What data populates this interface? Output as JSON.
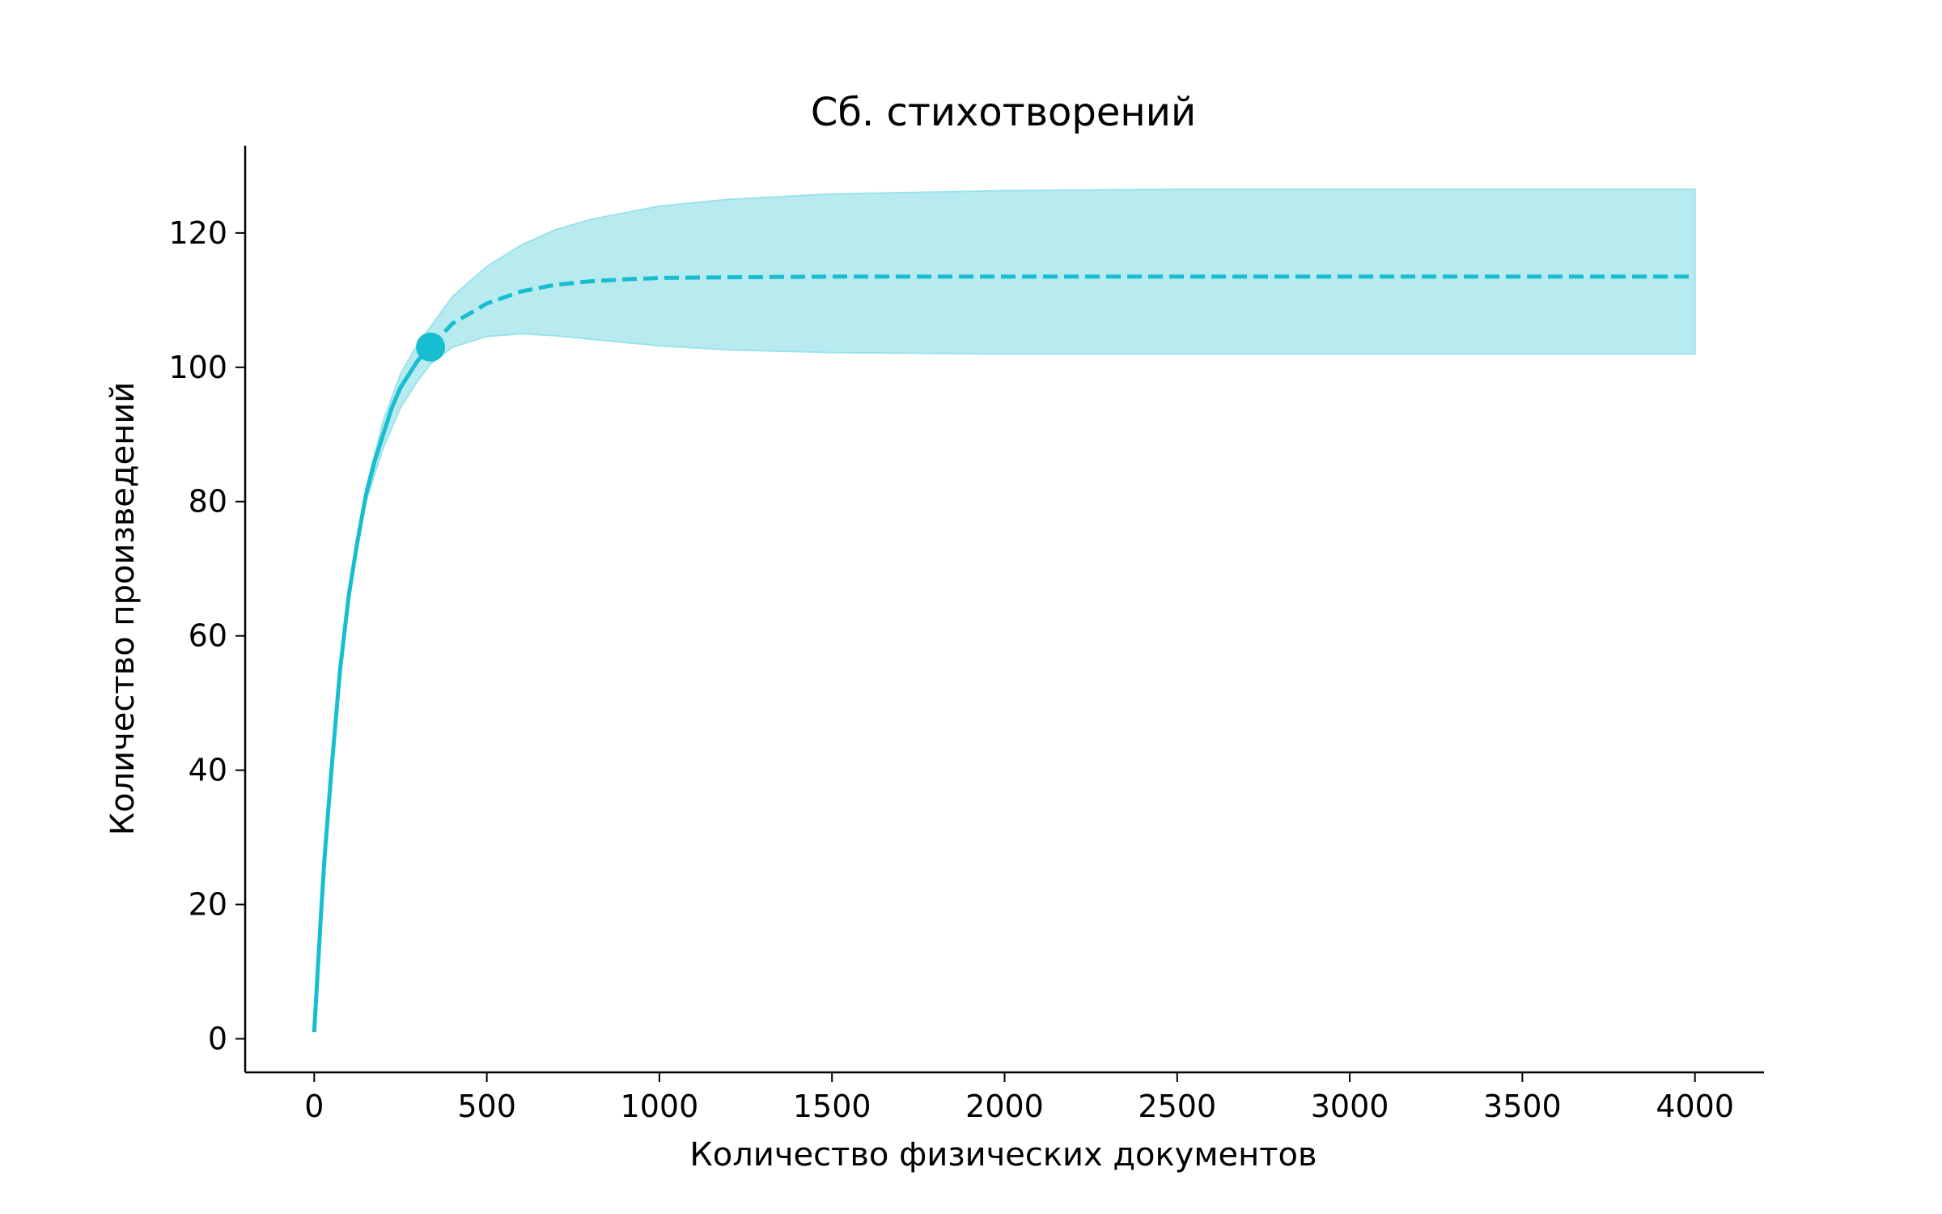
{
  "chart_data": {
    "type": "line",
    "title": "Сб. стихотворений",
    "xlabel": "Количество физических документов",
    "ylabel": "Количество произведений",
    "xlim": [
      -200,
      4200
    ],
    "ylim": [
      -5,
      133
    ],
    "xticks": [
      0,
      500,
      1000,
      1500,
      2000,
      2500,
      3000,
      3500,
      4000
    ],
    "yticks": [
      0,
      20,
      40,
      60,
      80,
      100,
      120
    ],
    "grid": false,
    "legend": "none",
    "color": "#17becf",
    "band_color": "#9ae3ea",
    "series": [
      {
        "style": "solid",
        "x": [
          0,
          10,
          20,
          30,
          50,
          75,
          100,
          125,
          150,
          175,
          200,
          225,
          250,
          275,
          300,
          337
        ],
        "y": [
          1,
          10,
          19,
          27,
          40,
          55,
          66,
          74,
          81,
          86,
          90,
          94,
          97,
          99,
          101,
          103
        ]
      },
      {
        "style": "dashed",
        "x": [
          337,
          400,
          500,
          600,
          700,
          800,
          900,
          1000,
          1200,
          1500,
          2000,
          2500,
          3000,
          3500,
          4000
        ],
        "y": [
          103,
          106.5,
          109.5,
          111.3,
          112.3,
          112.8,
          113.1,
          113.3,
          113.4,
          113.5,
          113.5,
          113.5,
          113.5,
          113.5,
          113.5
        ]
      }
    ],
    "band": {
      "x": [
        0,
        50,
        100,
        150,
        200,
        250,
        300,
        337,
        400,
        500,
        600,
        700,
        800,
        1000,
        1200,
        1500,
        2000,
        2500,
        3000,
        3500,
        4000
      ],
      "upper": [
        1,
        40,
        66,
        82,
        92,
        99,
        103.5,
        106,
        110.5,
        115,
        118.2,
        120.5,
        122,
        124,
        125,
        125.8,
        126.3,
        126.5,
        126.5,
        126.5,
        126.5
      ],
      "lower": [
        1,
        40,
        66,
        80,
        88,
        94,
        98,
        100.5,
        103,
        104.6,
        105,
        104.7,
        104.2,
        103.2,
        102.6,
        102.2,
        102,
        102,
        102,
        102,
        102
      ]
    },
    "marker": {
      "x": 337,
      "y": 103
    }
  }
}
